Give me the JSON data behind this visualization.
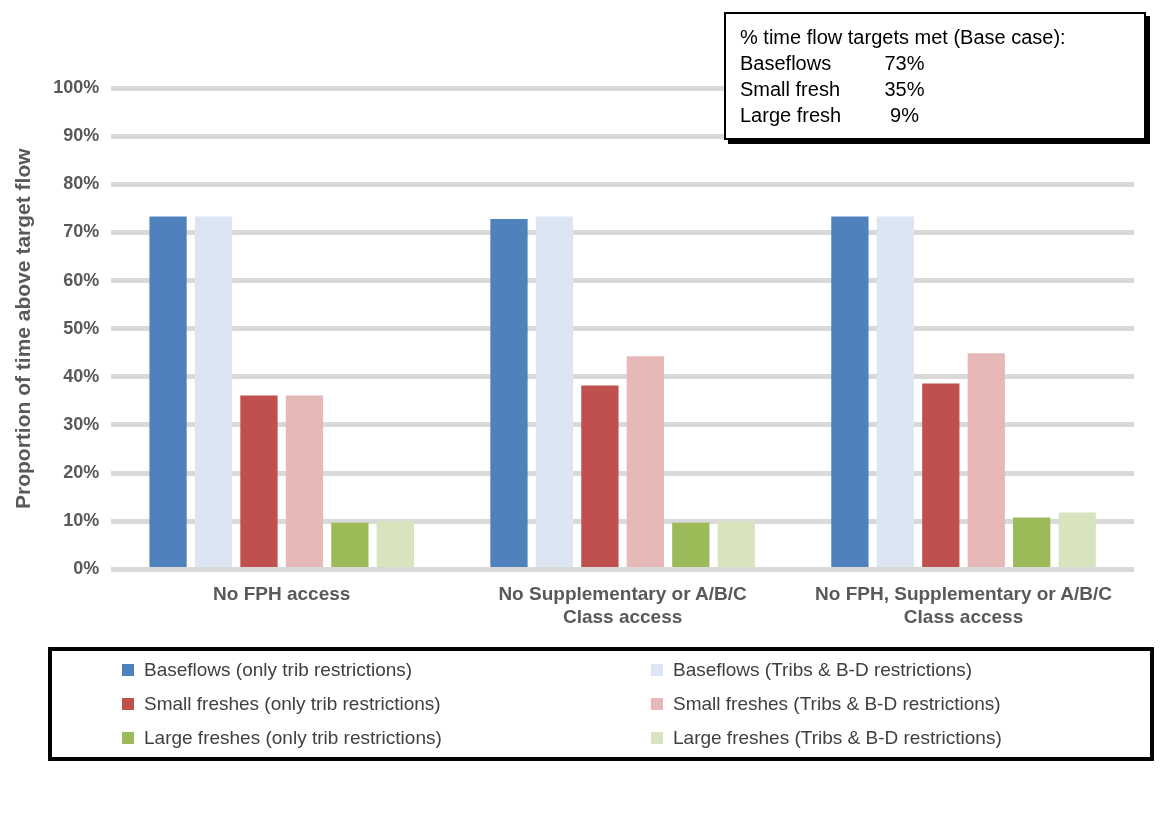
{
  "chart_data": {
    "type": "bar",
    "ylabel": "Proportion of time above target flow",
    "categories": [
      "No FPH access",
      "No Supplementary or A/B/C Class access",
      "No FPH, Supplementary or A/B/C Class access"
    ],
    "series": [
      {
        "name": "Baseflows (only trib restrictions)",
        "color": "#4f81bd",
        "values": [
          73.3,
          72.8,
          73.3
        ]
      },
      {
        "name": "Baseflows (Tribs & B-D restrictions)",
        "color": "#dce6f2",
        "values": [
          73.3,
          73.3,
          73.3
        ]
      },
      {
        "name": "Small freshes (only trib restrictions)",
        "color": "#c0504d",
        "values": [
          36.1,
          38.2,
          38.6
        ]
      },
      {
        "name": "Small freshes (Tribs & B-D restrictions)",
        "color": "#e6b9b8",
        "values": [
          36.1,
          44.3,
          44.9
        ]
      },
      {
        "name": "Large freshes (only trib restrictions)",
        "color": "#9bbb59",
        "values": [
          9.7,
          9.7,
          10.8
        ]
      },
      {
        "name": "Large freshes (Tribs & B-D restrictions)",
        "color": "#d7e4bd",
        "values": [
          10.0,
          10.0,
          11.8
        ]
      }
    ],
    "ylim": [
      0,
      100
    ],
    "yticks": [
      {
        "value": 0,
        "label": "0%"
      },
      {
        "value": 10,
        "label": "10%"
      },
      {
        "value": 20,
        "label": "20%"
      },
      {
        "value": 30,
        "label": "30%"
      },
      {
        "value": 40,
        "label": "40%"
      },
      {
        "value": 50,
        "label": "50%"
      },
      {
        "value": 60,
        "label": "60%"
      },
      {
        "value": 70,
        "label": "70%"
      },
      {
        "value": 80,
        "label": "80%"
      },
      {
        "value": 90,
        "label": "90%"
      },
      {
        "value": 100,
        "label": "100%"
      }
    ],
    "grid": "y",
    "legend": "bottom",
    "annotations": [
      "% time flow targets met (Base case):",
      "Baseflows\t73%",
      "Small fresh\t35%",
      "Large fresh\t 9%"
    ]
  }
}
